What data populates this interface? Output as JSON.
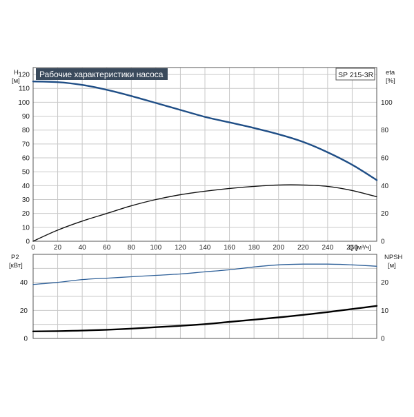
{
  "title": "Рабочие характеристики насоса",
  "model": "SP 215-3R",
  "colors": {
    "head": "#1f4e86",
    "p2": "#2d5f98",
    "eta": "#111111",
    "npsh": "#000000",
    "grid": "#c9c9c9",
    "frame": "#555555",
    "title_bg": "#3a4a5c"
  },
  "chart_data": [
    {
      "type": "line",
      "panel": "upper",
      "x_label": "Q [м³/ч]",
      "x_ticks": [
        "0",
        "20",
        "40",
        "60",
        "80",
        "100",
        "120",
        "140",
        "160",
        "180",
        "200",
        "220",
        "240",
        "260"
      ],
      "xlim": [
        0,
        280
      ],
      "y_left_label": "H",
      "y_left_unit": "[м]",
      "y_left_ticks": [
        "0",
        "10",
        "20",
        "30",
        "40",
        "50",
        "60",
        "70",
        "80",
        "90",
        "100",
        "110",
        "120"
      ],
      "y_left_lim": [
        0,
        125
      ],
      "y_right_label": "eta",
      "y_right_unit": "[%]",
      "y_right_ticks": [
        "0",
        "20",
        "40",
        "60",
        "80",
        "100"
      ],
      "y_right_lim": [
        0,
        125
      ],
      "grid": true,
      "series": [
        {
          "axis": "left",
          "x": [
            0,
            20,
            40,
            60,
            80,
            100,
            120,
            140,
            160,
            180,
            200,
            220,
            240,
            260,
            280
          ],
          "y": [
            115,
            114.5,
            112.5,
            109,
            104.5,
            99.5,
            94.5,
            89.5,
            85.5,
            81.5,
            77,
            71.5,
            64,
            55,
            44
          ]
        },
        {
          "axis": "right",
          "x": [
            0,
            20,
            40,
            60,
            80,
            100,
            120,
            140,
            160,
            180,
            200,
            220,
            240,
            260,
            280
          ],
          "y": [
            0,
            8,
            14.5,
            20,
            25.5,
            30,
            33.5,
            36,
            38,
            39.5,
            40.5,
            40.5,
            39.5,
            36.5,
            32
          ]
        }
      ]
    },
    {
      "type": "line",
      "panel": "lower",
      "x_label": "",
      "xlim": [
        0,
        280
      ],
      "y_left_label": "P2",
      "y_left_unit": "[кВт]",
      "y_left_ticks": [
        "0",
        "20",
        "40"
      ],
      "y_left_lim": [
        0,
        60
      ],
      "y_right_label": "NPSH",
      "y_right_unit": "[м]",
      "y_right_ticks": [
        "0",
        "10",
        "20"
      ],
      "y_right_lim": [
        0,
        30
      ],
      "grid": true,
      "series": [
        {
          "axis": "left",
          "x": [
            0,
            20,
            40,
            60,
            80,
            100,
            120,
            140,
            160,
            180,
            200,
            220,
            240,
            260,
            280
          ],
          "y": [
            38.5,
            40,
            42,
            43,
            44,
            45,
            46,
            47.5,
            49,
            51,
            52.5,
            53,
            53,
            52.5,
            51.5
          ]
        },
        {
          "axis": "right",
          "x": [
            0,
            20,
            40,
            60,
            80,
            100,
            120,
            140,
            160,
            180,
            200,
            220,
            240,
            260,
            280
          ],
          "y": [
            2.5,
            2.6,
            2.8,
            3.1,
            3.5,
            4.0,
            4.5,
            5.1,
            5.9,
            6.7,
            7.5,
            8.4,
            9.4,
            10.5,
            11.6
          ]
        }
      ]
    }
  ]
}
